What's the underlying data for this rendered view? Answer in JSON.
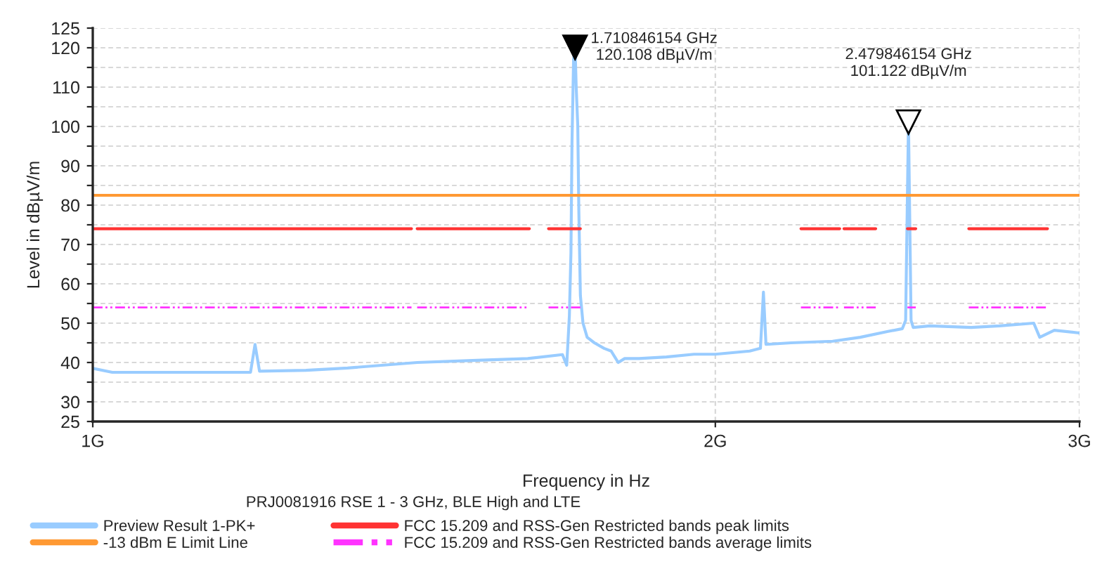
{
  "chart_data": {
    "type": "line",
    "title": "PRJ0081916 RSE 1 - 3 GHz, BLE High and LTE",
    "xlabel": "Frequency in Hz",
    "ylabel": "Level in dBµV/m",
    "log": "x",
    "grid": true,
    "legend": "bottom",
    "xlim": [
      1,
      3
    ],
    "xticks": [
      {
        "value": 1,
        "label": "1G"
      },
      {
        "value": 2,
        "label": "2G"
      },
      {
        "value": 3,
        "label": "3G"
      }
    ],
    "ylim": [
      25,
      125
    ],
    "yticks": [
      25,
      30,
      {
        "value": 35,
        "label": null
      },
      40,
      {
        "value": 45,
        "label": null
      },
      50,
      {
        "value": 55,
        "label": null
      },
      60,
      {
        "value": 65,
        "label": null
      },
      70,
      {
        "value": 75,
        "label": null
      },
      80,
      {
        "value": 85,
        "label": null
      },
      90,
      {
        "value": 95,
        "label": null
      },
      100,
      {
        "value": 105,
        "label": null
      },
      110,
      {
        "value": 115,
        "label": null
      },
      120,
      125
    ],
    "series": [
      {
        "name": "Preview Result 1-PK+",
        "color": "#99ccff",
        "line_style": "solid",
        "x": [
          1.0,
          1.022,
          1.087,
          1.138,
          1.192,
          1.198,
          1.204,
          1.268,
          1.328,
          1.435,
          1.526,
          1.623,
          1.687,
          1.695,
          1.7,
          1.703,
          1.705,
          1.708,
          1.710846154,
          1.713,
          1.716,
          1.718,
          1.721,
          1.726,
          1.734,
          1.748,
          1.767,
          1.781,
          1.795,
          1.808,
          1.837,
          1.894,
          1.953,
          2.0,
          2.078,
          2.103,
          2.11,
          2.116,
          2.176,
          2.279,
          2.35,
          2.424,
          2.463,
          2.472,
          2.479846154,
          2.487,
          2.493,
          2.54,
          2.659,
          2.744,
          2.851,
          2.87,
          2.917,
          3.0
        ],
        "values": [
          38.5,
          37.5,
          37.5,
          37.5,
          37.5,
          44.6,
          37.8,
          38,
          38.6,
          40,
          40.5,
          41,
          42,
          39.3,
          51.8,
          67.9,
          96,
          117,
          120.108,
          110,
          100,
          78.6,
          57,
          50,
          46.4,
          45,
          43.6,
          42.9,
          40,
          41,
          41,
          41.4,
          42.1,
          42.1,
          42.9,
          43.6,
          57.9,
          44.6,
          45,
          45.4,
          46.4,
          47.9,
          48.6,
          50.7,
          101.122,
          50.7,
          48.9,
          49.3,
          48.9,
          49.3,
          50,
          46.4,
          48.2,
          47.5
        ]
      },
      {
        "name": "FCC 15.209 and RSS-Gen Restricted bands peak limits",
        "color": "#ff3333",
        "line_style": "solid",
        "x": [
          1.0,
          1.426,
          1.43,
          1.435,
          1.626,
          1.64,
          1.661,
          1.721,
          1.9,
          2.2,
          2.297,
          2.302,
          2.308,
          2.391,
          2.43,
          2.477,
          2.5,
          2.58,
          2.652,
          2.895
        ],
        "values": [
          74,
          74,
          null,
          74,
          74,
          null,
          74,
          74,
          null,
          74,
          74,
          null,
          74,
          74,
          null,
          74,
          74,
          null,
          74,
          74
        ]
      },
      {
        "name": "-13 dBm E Limit Line",
        "color": "#ff9933",
        "line_style": "solid",
        "x": [
          1.0,
          3.0
        ],
        "values": [
          82.5,
          82.5
        ]
      },
      {
        "name": "FCC 15.209 and RSS-Gen Restricted bands average limits",
        "color": "#ff33ff",
        "line_style": "dashed",
        "x": [
          1.0,
          1.426,
          1.43,
          1.435,
          1.626,
          1.64,
          1.661,
          1.721,
          1.9,
          2.2,
          2.297,
          2.302,
          2.308,
          2.391,
          2.43,
          2.477,
          2.5,
          2.58,
          2.652,
          2.895
        ],
        "values": [
          54,
          54,
          null,
          54,
          54,
          null,
          54,
          54,
          null,
          54,
          54,
          null,
          54,
          54,
          null,
          54,
          54,
          null,
          54,
          54
        ]
      }
    ],
    "annotations": [
      {
        "text": "1.710846154 GHz\n120.108 dBµV/m",
        "x": 1.710846154,
        "y": 120.108
      },
      {
        "text": "2.479846154 GHz\n101.122 dBµV/m",
        "x": 2.479846154,
        "y": 101.122
      }
    ]
  }
}
